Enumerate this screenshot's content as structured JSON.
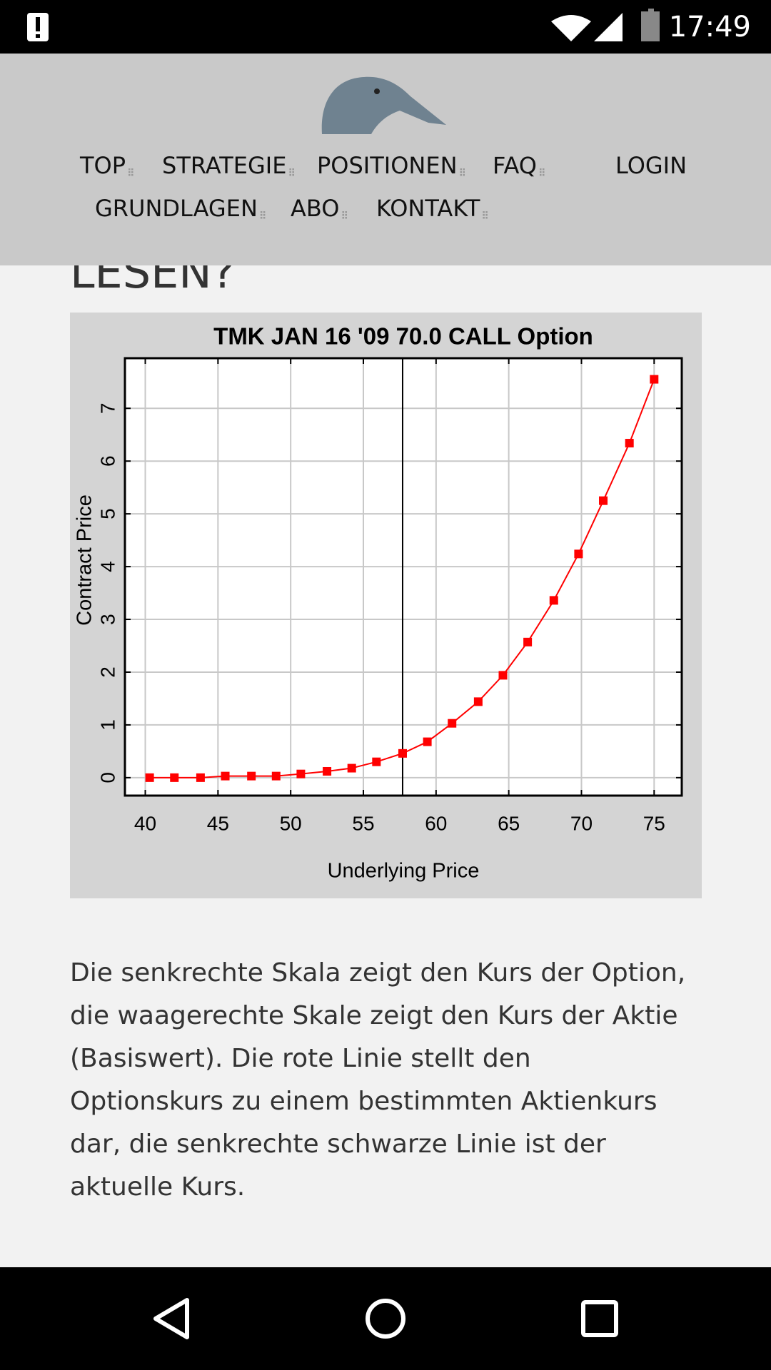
{
  "status_bar": {
    "time": "17:49"
  },
  "nav": {
    "items": [
      "TOP",
      "STRATEGIE",
      "POSITIONEN",
      "FAQ",
      "LOGIN",
      "GRUNDLAGEN",
      "ABO",
      "KONTAKT"
    ]
  },
  "heading": "LESEN?",
  "chart_data": {
    "type": "line",
    "title": "TMK JAN 16 '09 70.0 CALL Option",
    "x_label": "Underlying Price",
    "y_label": "Contract Price",
    "x": [
      40.3,
      42.0,
      43.8,
      45.5,
      47.3,
      49.0,
      50.7,
      52.5,
      54.2,
      55.9,
      57.7,
      59.4,
      61.1,
      62.9,
      64.6,
      66.3,
      68.1,
      69.8,
      71.5,
      73.3,
      75.0
    ],
    "values": [
      0,
      0,
      0,
      0.03,
      0.03,
      0.03,
      0.07,
      0.12,
      0.18,
      0.3,
      0.46,
      0.68,
      1.03,
      1.44,
      1.94,
      2.57,
      3.36,
      4.24,
      5.25,
      6.34,
      7.55
    ],
    "color": "#ff0000",
    "vline": 57.7,
    "xlim": [
      38.6,
      76.9
    ],
    "ylim": [
      -0.34,
      7.95
    ],
    "xticks": [
      40,
      45,
      50,
      55,
      60,
      65,
      70,
      75
    ],
    "yticks": [
      0,
      1,
      2,
      3,
      4,
      5,
      6,
      7
    ],
    "grid": true
  },
  "paragraph": {
    "lines": [
      "Die senkrechte Skala zeigt den Kurs der Option,",
      "die waagerechte Skale zeigt den Kurs der Aktie",
      "(Basiswert). Die rote Linie stellt den",
      "Optionskurs zu einem bestimmten Aktienkurs",
      "dar, die senkrechte schwarze Linie ist der",
      "aktuelle Kurs."
    ]
  }
}
